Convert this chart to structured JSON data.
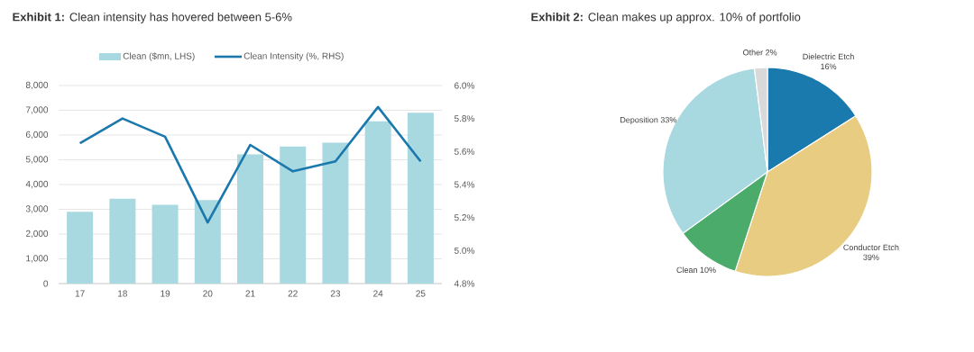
{
  "chart_data": [
    {
      "type": "bar",
      "title": "**Exhibit 1:**  Clean intensity has hovered between 5-6%",
      "categories": [
        "17",
        "18",
        "19",
        "20",
        "21",
        "22",
        "23",
        "24",
        "25"
      ],
      "series": [
        {
          "name": "Clean ($mn, LHS)",
          "type": "bar",
          "color": "#a8d8e0",
          "values": [
            2900,
            3430,
            3180,
            3370,
            5220,
            5540,
            5690,
            6550,
            6900
          ]
        },
        {
          "name": "Clean Intensity (%, RHS)",
          "type": "line",
          "axis": "y2",
          "color": "#1a78ad",
          "values": [
            5.65,
            5.8,
            5.69,
            5.17,
            5.64,
            5.48,
            5.54,
            5.87,
            5.54
          ]
        }
      ],
      "ylim": [
        0,
        8000
      ],
      "yticks": [
        0,
        {
          "value": 1000,
          "label": "1,000"
        },
        {
          "value": 2000,
          "label": "2,000"
        },
        {
          "value": 3000,
          "label": "3,000"
        },
        {
          "value": 4000,
          "label": "4,000"
        },
        {
          "value": 5000,
          "label": "5,000"
        },
        {
          "value": 6000,
          "label": "6,000"
        },
        {
          "value": 7000,
          "label": "7,000"
        },
        {
          "value": 8000,
          "label": "8,000"
        }
      ],
      "y2lim": [
        4.8,
        6.0
      ],
      "y2ticks": [
        {
          "value": 4.8,
          "label": "4.8%"
        },
        {
          "value": 5.0,
          "label": "5.0%"
        },
        {
          "value": 5.2,
          "label": "5.2%"
        },
        {
          "value": 5.4,
          "label": "5.4%"
        },
        {
          "value": 5.6,
          "label": "5.6%"
        },
        {
          "value": 5.8,
          "label": "5.8%"
        },
        {
          "value": 6.0,
          "label": "6.0%"
        }
      ],
      "grid": "y",
      "legend": "top"
    },
    {
      "type": "pie",
      "title": "**Exhibit 2:**  Clean makes up approx. 10% of portfolio",
      "categories": [
        "Dielectric Etch",
        "Conductor Etch",
        "Clean",
        "Deposition",
        "Other"
      ],
      "values": [
        16,
        39,
        10,
        33,
        2
      ],
      "value_labels": [
        "16%",
        "39%",
        "10%",
        "33%",
        "2%"
      ],
      "colors": [
        "#1a7aad",
        "#e8cc82",
        "#4aab6a",
        "#a8d8e0",
        "#d9d9d9"
      ]
    }
  ]
}
